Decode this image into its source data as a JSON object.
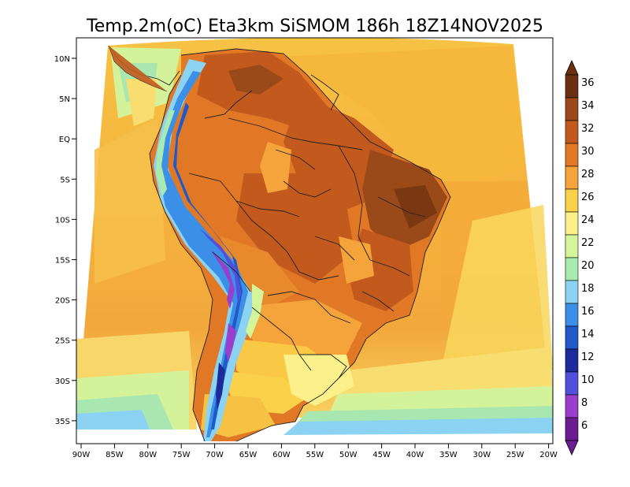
{
  "title": "Temp.2m(oC) Eta3km SiSMOM 186h 18Z14NOV2025",
  "lat_labels": [
    "10N",
    "5N",
    "EQ",
    "5S",
    "10S",
    "15S",
    "20S",
    "25S",
    "30S",
    "35S"
  ],
  "lon_labels": [
    "90W",
    "85W",
    "80W",
    "75W",
    "70W",
    "65W",
    "60W",
    "55W",
    "50W",
    "45W",
    "40W",
    "35W",
    "30W",
    "25W",
    "20W"
  ],
  "colorbar": {
    "labels": [
      "36",
      "34",
      "32",
      "30",
      "28",
      "26",
      "24",
      "22",
      "20",
      "18",
      "16",
      "14",
      "12",
      "10",
      "8",
      "6"
    ],
    "colors": [
      "#6b3010",
      "#9a4a18",
      "#c25a1e",
      "#e07826",
      "#f4a43a",
      "#f9d24a",
      "#fbf08a",
      "#d4f59a",
      "#a8eab0",
      "#8cd2f2",
      "#3c8fe6",
      "#1f5ac8",
      "#1c2a9a",
      "#5050dc",
      "#9a3fcc",
      "#6a1c90"
    ]
  }
}
